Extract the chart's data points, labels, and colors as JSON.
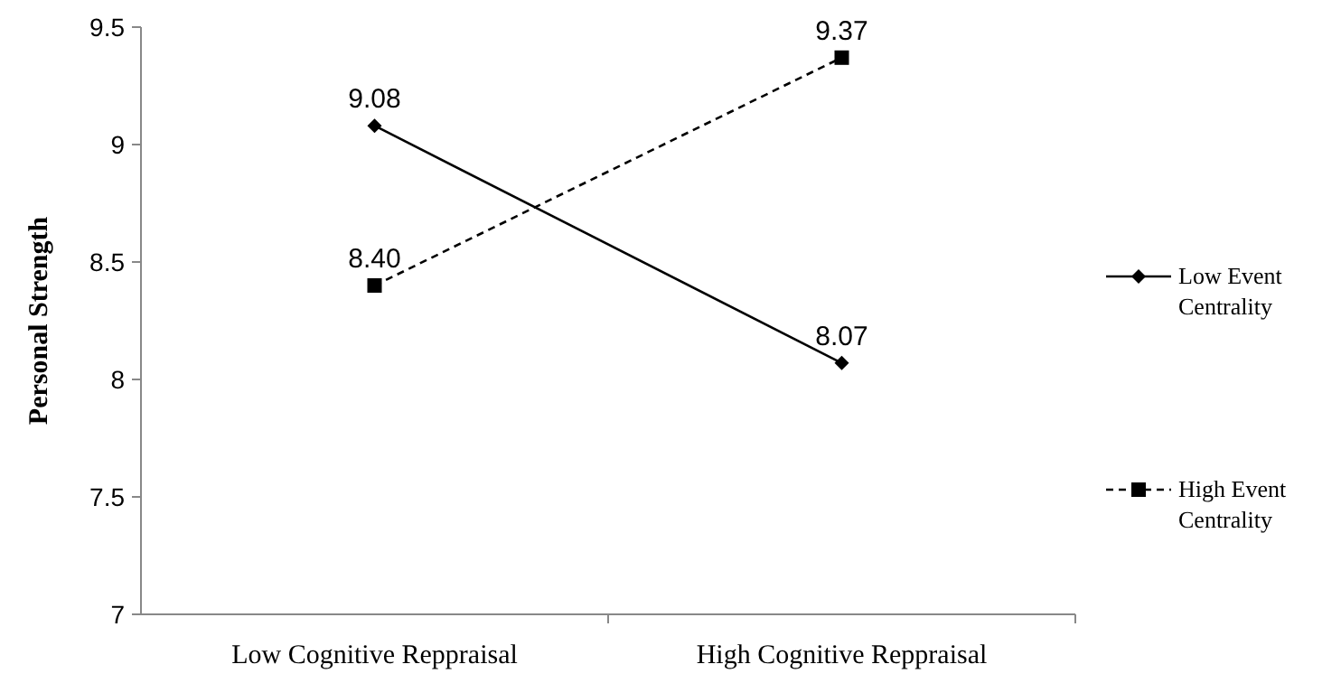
{
  "chart_data": {
    "type": "line",
    "ylabel": "Personal Strength",
    "categories": [
      "Low Cognitive Reppraisal",
      "High Cognitive Reppraisal"
    ],
    "series": [
      {
        "name": "Low Event Centrality",
        "color": "#000000",
        "values": [
          9.08,
          8.07
        ],
        "value_labels": [
          "9.08",
          "8.07"
        ],
        "marker": "diamond",
        "line_style": "solid"
      },
      {
        "name": "High Event Centrality",
        "color": "#000000",
        "values": [
          8.4,
          9.37
        ],
        "value_labels": [
          "8.40",
          "9.37"
        ],
        "marker": "square",
        "line_style": "dashed"
      }
    ],
    "ylim": [
      7,
      9.5
    ],
    "yticks": [
      7,
      7.5,
      8,
      8.5,
      9,
      9.5
    ],
    "grid": false,
    "legend": "right"
  }
}
